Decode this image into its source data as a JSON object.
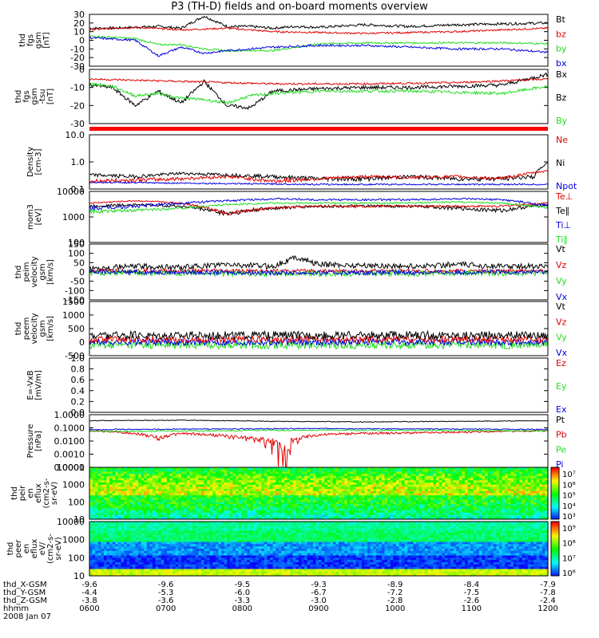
{
  "title": "P3 (TH-D) fields and on-board moments overview",
  "date_label": "2008 Jan 07",
  "colors": {
    "black": "#000000",
    "red": "#e00000",
    "green": "#22dd22",
    "blue": "#0000dd"
  },
  "chart_data": [
    {
      "type": "line",
      "ylabel": [
        "thd",
        "fgs",
        "gsm",
        "[nT]"
      ],
      "ylim": [
        -30,
        30
      ],
      "ticks": [
        "30",
        "20",
        "10",
        "0",
        "-10",
        "-20",
        "-30"
      ],
      "legend": [
        {
          "text": "Bt",
          "color": "black"
        },
        {
          "text": "bz",
          "color": "red"
        },
        {
          "text": "by",
          "color": "green"
        },
        {
          "text": "bx",
          "color": "blue"
        }
      ],
      "series": [
        {
          "color": "black",
          "x": [
            0,
            0.05,
            0.1,
            0.15,
            0.2,
            0.25,
            0.3,
            0.35,
            0.4,
            0.45,
            0.5,
            0.6,
            0.7,
            0.8,
            0.9,
            1
          ],
          "values": [
            14,
            14,
            15,
            16,
            14,
            28,
            16,
            16,
            14,
            16,
            15,
            18,
            16,
            18,
            19,
            20
          ],
          "noise": 1.5
        },
        {
          "color": "red",
          "x": [
            0,
            0.05,
            0.1,
            0.2,
            0.3,
            0.4,
            0.5,
            0.6,
            0.7,
            0.8,
            0.9,
            1
          ],
          "values": [
            12,
            14,
            15,
            12,
            14,
            10,
            9,
            8,
            9,
            10,
            12,
            14
          ],
          "noise": 1
        },
        {
          "color": "green",
          "x": [
            0,
            0.1,
            0.15,
            0.2,
            0.25,
            0.3,
            0.4,
            0.5,
            0.6,
            0.7,
            0.8,
            0.9,
            1
          ],
          "values": [
            5,
            2,
            -5,
            -5,
            -10,
            -12,
            -12,
            -4,
            -3,
            -3,
            -3,
            -3,
            -4
          ],
          "noise": 1
        },
        {
          "color": "blue",
          "x": [
            0,
            0.1,
            0.15,
            0.2,
            0.25,
            0.3,
            0.4,
            0.5,
            0.6,
            0.7,
            0.8,
            0.9,
            1
          ],
          "values": [
            3,
            0,
            -18,
            -8,
            -15,
            -12,
            -8,
            -6,
            -6,
            -8,
            -10,
            -10,
            -14
          ],
          "noise": 1.2
        }
      ]
    },
    {
      "type": "line",
      "ylabel": [
        "thd",
        "fgs",
        "gsm",
        "-tsu",
        "[nT]"
      ],
      "ylim": [
        -35,
        10
      ],
      "ticks": [
        "0",
        "-10",
        "-20",
        "-30"
      ],
      "legend": [
        {
          "text": "Bx",
          "color": "black"
        },
        {
          "text": "Bz",
          "color": "black"
        },
        {
          "text": "By",
          "color": "green"
        }
      ],
      "series": [
        {
          "color": "black",
          "x": [
            0,
            0.05,
            0.1,
            0.15,
            0.2,
            0.25,
            0.3,
            0.35,
            0.4,
            0.5,
            0.6,
            0.7,
            0.8,
            0.9,
            1
          ],
          "values": [
            -3,
            -5,
            -20,
            -8,
            -18,
            0,
            -20,
            -22,
            -8,
            -6,
            -5,
            -5,
            -4,
            -3,
            6
          ],
          "noise": 1.5
        },
        {
          "color": "red",
          "x": [
            0,
            0.2,
            0.4,
            0.6,
            0.8,
            1
          ],
          "values": [
            2,
            0,
            -2,
            -2,
            -1,
            2
          ],
          "noise": 0.8
        },
        {
          "color": "green",
          "x": [
            0,
            0.05,
            0.1,
            0.15,
            0.2,
            0.25,
            0.3,
            0.35,
            0.4,
            0.5,
            0.6,
            0.7,
            0.8,
            0.9,
            1
          ],
          "values": [
            -2,
            -4,
            -12,
            -10,
            -14,
            -15,
            -18,
            -12,
            -10,
            -8,
            -8,
            -8,
            -9,
            -10,
            -4
          ],
          "noise": 1.2
        }
      ]
    },
    {
      "type": "line",
      "ylabel": [
        "Density",
        "[cm-3]"
      ],
      "log": true,
      "ylim": [
        0.1,
        12
      ],
      "ticks": [
        "10.0",
        "1.0",
        "0.1"
      ],
      "legend": [
        {
          "text": "Ne",
          "color": "red"
        },
        {
          "text": "Ni",
          "color": "black"
        },
        {
          "text": "Npot",
          "color": "blue"
        }
      ],
      "series": [
        {
          "color": "black",
          "x": [
            0,
            0.1,
            0.2,
            0.3,
            0.4,
            0.5,
            0.6,
            0.7,
            0.8,
            0.9,
            0.97,
            1
          ],
          "values": [
            0.35,
            0.3,
            0.4,
            0.35,
            0.3,
            0.25,
            0.25,
            0.3,
            0.25,
            0.25,
            0.3,
            1.0
          ],
          "noise": 0.05
        },
        {
          "color": "red",
          "x": [
            0,
            0.1,
            0.2,
            0.3,
            0.4,
            0.5,
            0.6,
            0.7,
            0.8,
            0.9,
            1
          ],
          "values": [
            0.2,
            0.22,
            0.25,
            0.3,
            0.2,
            0.25,
            0.3,
            0.28,
            0.3,
            0.25,
            0.5
          ],
          "noise": 0.04
        },
        {
          "color": "blue",
          "x": [
            0,
            0.5,
            1
          ],
          "values": [
            0.18,
            0.15,
            0.15
          ],
          "noise": 0.01
        }
      ]
    },
    {
      "type": "line",
      "ylabel": [
        "mom3",
        "[eV]"
      ],
      "log": true,
      "ylim": [
        100,
        12000
      ],
      "ticks": [
        "10000",
        "1000",
        "100"
      ],
      "legend": [
        {
          "text": "Te⊥",
          "color": "red"
        },
        {
          "text": "Te∥",
          "color": "black"
        },
        {
          "text": "Ti⊥",
          "color": "blue"
        },
        {
          "text": "Ti∥",
          "color": "green"
        }
      ],
      "series": [
        {
          "color": "black",
          "x": [
            0,
            0.1,
            0.2,
            0.3,
            0.4,
            0.5,
            0.6,
            0.7,
            0.8,
            0.9,
            1
          ],
          "values": [
            3000,
            3500,
            3000,
            1500,
            2500,
            3000,
            3000,
            3000,
            2500,
            2000,
            3500
          ],
          "noise": 400
        },
        {
          "color": "red",
          "x": [
            0,
            0.1,
            0.2,
            0.3,
            0.4,
            0.5,
            0.6,
            0.7,
            0.8,
            0.9,
            1
          ],
          "values": [
            4000,
            5000,
            4000,
            1500,
            2500,
            3000,
            3000,
            3000,
            3000,
            3000,
            4000
          ],
          "noise": 300
        },
        {
          "color": "blue",
          "x": [
            0,
            0.1,
            0.2,
            0.3,
            0.4,
            0.5,
            0.6,
            0.7,
            0.8,
            0.9,
            1
          ],
          "values": [
            2500,
            3000,
            4000,
            5000,
            6000,
            5500,
            5500,
            5500,
            6000,
            5500,
            3000
          ],
          "noise": 500
        },
        {
          "color": "green",
          "x": [
            0,
            0.1,
            0.2,
            0.3,
            0.4,
            0.5,
            0.6,
            0.7,
            0.8,
            0.9,
            1
          ],
          "values": [
            1800,
            2000,
            2500,
            3500,
            4000,
            4000,
            4000,
            4000,
            4500,
            4000,
            2500
          ],
          "noise": 300
        }
      ]
    },
    {
      "type": "line",
      "ylabel": [
        "thd",
        "peim",
        "velocity",
        "gsm",
        "[km/s]"
      ],
      "ylim": [
        -150,
        150
      ],
      "ticks": [
        "150",
        "100",
        "50",
        "0",
        "-50",
        "-100",
        "-150"
      ],
      "legend": [
        {
          "text": "Vt",
          "color": "black"
        },
        {
          "text": "Vz",
          "color": "red"
        },
        {
          "text": "Vy",
          "color": "green"
        },
        {
          "text": "Vx",
          "color": "blue"
        }
      ],
      "series": [
        {
          "color": "black",
          "x": [
            0,
            0.1,
            0.2,
            0.3,
            0.4,
            0.45,
            0.5,
            0.6,
            0.7,
            0.8,
            0.9,
            1
          ],
          "values": [
            20,
            30,
            25,
            40,
            30,
            80,
            40,
            35,
            30,
            40,
            30,
            30
          ],
          "noise": 15
        },
        {
          "color": "red",
          "x": [
            0,
            0.5,
            1
          ],
          "values": [
            5,
            5,
            5
          ],
          "noise": 10
        },
        {
          "color": "green",
          "x": [
            0,
            0.5,
            1
          ],
          "values": [
            -5,
            -10,
            -5
          ],
          "noise": 15
        },
        {
          "color": "blue",
          "x": [
            0,
            0.5,
            1
          ],
          "values": [
            0,
            -5,
            0
          ],
          "noise": 12
        }
      ]
    },
    {
      "type": "line",
      "ylabel": [
        "thd",
        "peem",
        "velocity",
        "gsm",
        "[km/s]"
      ],
      "ylim": [
        -500,
        1500
      ],
      "ticks": [
        "1500",
        "1000",
        "500",
        "0",
        "-500"
      ],
      "legend": [
        {
          "text": "Vt",
          "color": "black"
        },
        {
          "text": "Vz",
          "color": "red"
        },
        {
          "text": "Vy",
          "color": "green"
        },
        {
          "text": "Vx",
          "color": "blue"
        }
      ],
      "series": [
        {
          "color": "green",
          "x": [
            0,
            1
          ],
          "values": [
            -100,
            -100
          ],
          "noise": 150
        },
        {
          "color": "blue",
          "x": [
            0,
            1
          ],
          "values": [
            0,
            0
          ],
          "noise": 120
        },
        {
          "color": "red",
          "x": [
            0,
            1
          ],
          "values": [
            100,
            100
          ],
          "noise": 120
        },
        {
          "color": "black",
          "x": [
            0,
            1
          ],
          "values": [
            250,
            250
          ],
          "noise": 150
        }
      ]
    },
    {
      "type": "line",
      "ylabel": [
        "E=-VxB",
        "[mV/m]"
      ],
      "ylim": [
        0,
        1
      ],
      "ticks": [
        "1.0",
        "0.8",
        "0.6",
        "0.4",
        "0.2",
        "0.0"
      ],
      "legend": [
        {
          "text": "Ez",
          "color": "red"
        },
        {
          "text": "Ey",
          "color": "green"
        },
        {
          "text": "Ex",
          "color": "blue"
        }
      ],
      "series": []
    },
    {
      "type": "line",
      "ylabel": [
        "Pressure",
        "[nPa]"
      ],
      "log": true,
      "ylim": [
        0.0001,
        1.5
      ],
      "ticks": [
        "1.0000",
        "0.1000",
        "0.0100",
        "0.0010",
        "0.0001"
      ],
      "legend": [
        {
          "text": "Pt",
          "color": "black"
        },
        {
          "text": "Pb",
          "color": "red"
        },
        {
          "text": "Pe",
          "color": "green"
        },
        {
          "text": "Pi",
          "color": "blue"
        }
      ],
      "series": [
        {
          "color": "black",
          "x": [
            0,
            0.2,
            0.4,
            0.6,
            0.8,
            1
          ],
          "values": [
            0.5,
            0.55,
            0.45,
            0.4,
            0.45,
            0.5
          ],
          "noise": 0.03
        },
        {
          "color": "red",
          "x": [
            0,
            0.1,
            0.15,
            0.2,
            0.3,
            0.4,
            0.42,
            0.44,
            0.5,
            0.6,
            0.8,
            1
          ],
          "values": [
            0.08,
            0.05,
            0.02,
            0.05,
            0.03,
            0.01,
            0.0002,
            0.01,
            0.04,
            0.05,
            0.06,
            0.08
          ],
          "noise": 0.01
        },
        {
          "color": "green",
          "x": [
            0,
            0.5,
            1
          ],
          "values": [
            0.07,
            0.09,
            0.08
          ],
          "noise": 0.01
        },
        {
          "color": "blue",
          "x": [
            0,
            0.5,
            1
          ],
          "values": [
            0.1,
            0.12,
            0.1
          ],
          "noise": 0.01
        }
      ]
    },
    {
      "type": "heatmap",
      "ylabel": [
        "thd",
        "peir",
        "en",
        "eflux",
        "(cm2-s-",
        "sr-eV)"
      ],
      "ticks": [
        "10000",
        "1000",
        "100",
        "10"
      ],
      "colorbar": [
        "10⁷",
        "10⁶",
        "10⁵",
        "10⁴",
        "10³"
      ]
    },
    {
      "type": "heatmap",
      "ylabel": [
        "thd",
        "peer",
        "en",
        "eflux",
        "eV/",
        "(cm2-s-",
        "sr-eV)"
      ],
      "ticks": [
        "10000",
        "1000",
        "100",
        "10"
      ],
      "colorbar": [
        "10⁹",
        "10⁸",
        "10⁷",
        "10⁶"
      ]
    }
  ],
  "xaxis": {
    "rows": [
      {
        "label": "thd_X-GSM",
        "values": [
          "-9.6",
          "-9.6",
          "-9.5",
          "-9.3",
          "-8.9",
          "-8.4",
          "-7.9"
        ]
      },
      {
        "label": "thd_Y-GSM",
        "values": [
          "-4.4",
          "-5.3",
          "-6.0",
          "-6.7",
          "-7.2",
          "-7.5",
          "-7.8"
        ]
      },
      {
        "label": "thd_Z-GSM",
        "values": [
          "-3.8",
          "-3.6",
          "-3.3",
          "-3.0",
          "-2.8",
          "-2.6",
          "-2.4"
        ]
      },
      {
        "label": "hhmm",
        "values": [
          "0600",
          "0700",
          "0800",
          "0900",
          "1000",
          "1100",
          "1200"
        ]
      }
    ]
  }
}
